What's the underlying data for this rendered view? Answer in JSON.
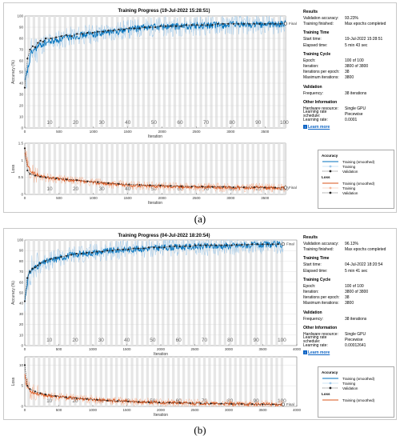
{
  "figures": [
    {
      "id": "a",
      "caption": "(a)",
      "title": "Training Progress (19-Jul-2022 15:28:51)",
      "accuracy_axis": {
        "ylabel": "Accuracy (%)",
        "yticks": [
          "0",
          "10",
          "20",
          "30",
          "40",
          "50",
          "60",
          "70",
          "80",
          "90",
          "100"
        ],
        "final_label": "Final"
      },
      "loss_axis": {
        "ylabel": "Loss",
        "yticks": [
          "0",
          "0.5",
          "1",
          "1.5"
        ],
        "final_label": "Final"
      },
      "xlabel": "Iteration",
      "xticks": [
        "0",
        "500",
        "1000",
        "1500",
        "2000",
        "2500",
        "3000",
        "3500"
      ],
      "epoch_labels": [
        "10",
        "20",
        "30",
        "40",
        "50",
        "60",
        "70",
        "80",
        "90",
        "100"
      ],
      "info": {
        "results_header": "Results",
        "results": [
          [
            "Validation accuracy:",
            "93.23%"
          ],
          [
            "Training finished:",
            "Max epochs completed"
          ]
        ],
        "time_header": "Training Time",
        "time": [
          [
            "Start time:",
            "19-Jul-2022 15:28:51"
          ],
          [
            "Elapsed time:",
            "5 min 43 sec"
          ]
        ],
        "cycle_header": "Training Cycle",
        "cycle": [
          [
            "Epoch:",
            "100 of 100"
          ],
          [
            "Iteration:",
            "3800 of 3800"
          ],
          [
            "Iterations per epoch:",
            "38"
          ],
          [
            "Maximum iterations:",
            "3800"
          ]
        ],
        "validation_header": "Validation",
        "validation": [
          [
            "Frequency:",
            "38 iterations"
          ]
        ],
        "other_header": "Other Information",
        "other": [
          [
            "Hardware resource:",
            "Single GPU"
          ],
          [
            "Learning rate schedule:",
            "Piecewise"
          ],
          [
            "Learning rate:",
            "0.0001"
          ]
        ],
        "learn_more": "Learn more"
      },
      "legend": {
        "accuracy_header": "Accuracy",
        "accuracy_items": [
          "Training (smoothed)",
          "Training",
          "Validation"
        ],
        "loss_header": "Loss",
        "loss_items": [
          "Training (smoothed)",
          "Training",
          "Validation"
        ]
      }
    },
    {
      "id": "b",
      "caption": "(b)",
      "title": "Training Progress (04-Jul-2022 18:20:54)",
      "accuracy_axis": {
        "ylabel": "Accuracy (%)",
        "yticks": [
          "0",
          "10",
          "20",
          "30",
          "40",
          "50",
          "60",
          "70",
          "80",
          "90",
          "100"
        ],
        "final_label": "Final"
      },
      "loss_axis": {
        "ylabel": "Loss",
        "yticks": [
          "0",
          "5",
          "10"
        ],
        "final_label": "Final"
      },
      "xlabel": "Iteration",
      "xticks": [
        "0",
        "500",
        "1000",
        "1500",
        "2000",
        "2500",
        "3000",
        "3500",
        "4000"
      ],
      "epoch_labels": [
        "10",
        "20",
        "30",
        "40",
        "50",
        "60",
        "70",
        "80",
        "90",
        "100"
      ],
      "info": {
        "results_header": "Results",
        "results": [
          [
            "Validation accuracy:",
            "96.13%"
          ],
          [
            "Training finished:",
            "Max epochs completed"
          ]
        ],
        "time_header": "Training Time",
        "time": [
          [
            "Start time:",
            "04-Jul-2022 18:20:54"
          ],
          [
            "Elapsed time:",
            "5 min 41 sec"
          ]
        ],
        "cycle_header": "Training Cycle",
        "cycle": [
          [
            "Epoch:",
            "100 of 100"
          ],
          [
            "Iteration:",
            "3800 of 3800"
          ],
          [
            "Iterations per epoch:",
            "38"
          ],
          [
            "Maximum iterations:",
            "3800"
          ]
        ],
        "validation_header": "Validation",
        "validation": [
          [
            "Frequency:",
            "38 iterations"
          ]
        ],
        "other_header": "Other Information",
        "other": [
          [
            "Hardware resource:",
            "Single GPU"
          ],
          [
            "Learning rate schedule:",
            "Piecewise"
          ],
          [
            "Learning rate:",
            "0.00012641"
          ]
        ],
        "learn_more": "Learn more"
      },
      "legend": {
        "accuracy_header": "Accuracy",
        "accuracy_items": [
          "Training (smoothed)",
          "Training",
          "Validation"
        ],
        "loss_header": "Loss",
        "loss_items": [
          "Training (smoothed)"
        ]
      }
    }
  ],
  "colors": {
    "acc_smoothed": "#0072bd",
    "acc_raw": "#9fc9ea",
    "loss_smoothed": "#d95319",
    "loss_raw": "#f4b79a",
    "validation": "#222222",
    "epoch_band": "#e6e6e6"
  },
  "chart_data": [
    {
      "type": "line",
      "title": "Training Progress (19-Jul-2022 15:28:51)",
      "xlabel": "Iteration",
      "ylabel": "Accuracy (%)",
      "xlim": [
        0,
        3800
      ],
      "ylim": [
        0,
        100
      ],
      "series": [
        {
          "name": "Training (smoothed)",
          "x": [
            0,
            100,
            200,
            300,
            500,
            700,
            1000,
            1300,
            1500,
            1800,
            2100,
            2400,
            2700,
            3000,
            3300,
            3600,
            3800
          ],
          "values": [
            40,
            68,
            73,
            76,
            79,
            82,
            84,
            86,
            88,
            90,
            90.5,
            91,
            91.5,
            92,
            92.2,
            92.5,
            92.8
          ]
        },
        {
          "name": "Validation",
          "x": [
            0,
            38,
            76,
            114,
            152,
            190,
            228,
            266,
            304,
            380,
            456,
            532,
            608,
            684,
            760,
            836,
            912,
            988,
            1064,
            1140,
            1216,
            1292,
            1368,
            1444,
            1520,
            1596,
            1672,
            1748,
            1824,
            1900,
            1976,
            2052,
            2128,
            2204,
            2280,
            2356,
            2432,
            2508,
            2584,
            2660,
            2736,
            2812,
            2888,
            2964,
            3040,
            3116,
            3192,
            3268,
            3344,
            3420,
            3496,
            3572,
            3648,
            3724,
            3800
          ],
          "values": [
            36,
            62,
            70,
            73,
            72,
            76,
            78,
            77,
            80,
            80,
            81,
            82,
            83,
            82,
            84,
            84,
            85,
            85,
            86,
            86,
            87,
            87,
            88,
            88,
            89,
            89,
            89,
            90,
            90,
            90,
            91,
            91,
            91,
            91,
            91,
            92,
            92,
            92,
            92,
            92,
            92,
            93,
            93,
            93,
            93,
            93,
            93,
            93,
            93,
            93,
            93,
            93,
            93,
            93,
            93.2
          ]
        }
      ]
    },
    {
      "type": "line",
      "xlabel": "Iteration",
      "ylabel": "Loss",
      "xlim": [
        0,
        3800
      ],
      "ylim": [
        0,
        1.5
      ],
      "series": [
        {
          "name": "Training (smoothed)",
          "x": [
            0,
            50,
            100,
            200,
            300,
            500,
            700,
            1000,
            1300,
            1500,
            1800,
            2100,
            2400,
            2700,
            3000,
            3300,
            3600,
            3800
          ],
          "values": [
            1.2,
            0.8,
            0.65,
            0.55,
            0.5,
            0.45,
            0.4,
            0.35,
            0.3,
            0.27,
            0.25,
            0.24,
            0.22,
            0.21,
            0.2,
            0.2,
            0.19,
            0.19
          ]
        },
        {
          "name": "Validation",
          "x": [
            0,
            38,
            76,
            152,
            228,
            304,
            456,
            608,
            760,
            912,
            1064,
            1216,
            1368,
            1520,
            1672,
            1824,
            1976,
            2128,
            2280,
            2432,
            2584,
            2736,
            2888,
            3040,
            3192,
            3344,
            3496,
            3648,
            3800
          ],
          "values": [
            1.35,
            0.7,
            0.6,
            0.55,
            0.52,
            0.5,
            0.47,
            0.44,
            0.42,
            0.38,
            0.36,
            0.33,
            0.31,
            0.29,
            0.28,
            0.27,
            0.26,
            0.25,
            0.24,
            0.23,
            0.23,
            0.22,
            0.22,
            0.21,
            0.21,
            0.21,
            0.2,
            0.2,
            0.2
          ]
        }
      ]
    },
    {
      "type": "line",
      "title": "Training Progress (04-Jul-2022 18:20:54)",
      "xlabel": "Iteration",
      "ylabel": "Accuracy (%)",
      "xlim": [
        0,
        4000
      ],
      "ylim": [
        0,
        100
      ],
      "series": [
        {
          "name": "Training (smoothed)",
          "x": [
            0,
            50,
            100,
            200,
            300,
            500,
            700,
            1000,
            1300,
            1500,
            1800,
            2100,
            2400,
            2700,
            3000,
            3300,
            3600,
            3800
          ],
          "values": [
            42,
            66,
            72,
            76,
            79,
            83,
            86,
            88,
            90,
            91,
            92,
            93,
            93.5,
            94,
            94.5,
            95,
            95.5,
            95.8
          ]
        },
        {
          "name": "Validation",
          "x": [
            0,
            38,
            76,
            114,
            152,
            190,
            228,
            304,
            380,
            456,
            532,
            608,
            684,
            760,
            836,
            912,
            988,
            1064,
            1140,
            1216,
            1292,
            1368,
            1444,
            1520,
            1596,
            1672,
            1748,
            1824,
            1900,
            1976,
            2052,
            2128,
            2204,
            2280,
            2356,
            2432,
            2508,
            2584,
            2660,
            2736,
            2812,
            2888,
            2964,
            3040,
            3116,
            3192,
            3268,
            3344,
            3420,
            3496,
            3572,
            3648,
            3724,
            3800
          ],
          "values": [
            42,
            64,
            70,
            73,
            74,
            76,
            78,
            80,
            82,
            83,
            84,
            85,
            86,
            87,
            87,
            88,
            88,
            89,
            89,
            90,
            90,
            91,
            91,
            91,
            92,
            92,
            92,
            93,
            93,
            93,
            93,
            94,
            94,
            94,
            94,
            94,
            95,
            95,
            95,
            95,
            95,
            95,
            95,
            95,
            95.5,
            95.5,
            95.5,
            96,
            96,
            96,
            96,
            96,
            96.1,
            96.13
          ]
        }
      ]
    },
    {
      "type": "line",
      "xlabel": "Iteration",
      "ylabel": "Loss",
      "xlim": [
        0,
        4000
      ],
      "ylim": [
        0,
        12
      ],
      "series": [
        {
          "name": "Training (smoothed)",
          "x": [
            0,
            30,
            60,
            100,
            200,
            300,
            500,
            700,
            1000,
            1300,
            1500,
            1800,
            2100,
            2400,
            2700,
            3000,
            3300,
            3600,
            3800
          ],
          "values": [
            8,
            5,
            4.2,
            3.5,
            3.0,
            2.7,
            2.3,
            2.0,
            1.7,
            1.4,
            1.2,
            1.0,
            0.9,
            0.8,
            0.7,
            0.6,
            0.55,
            0.5,
            0.45
          ]
        },
        {
          "name": "Validation",
          "x": [
            0,
            38,
            76,
            152,
            228,
            304,
            456,
            608,
            760,
            912,
            1064,
            1216,
            1368,
            1520,
            1672,
            1824,
            1976,
            2128,
            2280,
            2432,
            2584,
            2736,
            2888,
            3040,
            3192,
            3344,
            3496,
            3648,
            3800
          ],
          "values": [
            10,
            5,
            4.2,
            3.6,
            3.2,
            2.9,
            2.5,
            2.2,
            2.0,
            1.8,
            1.6,
            1.4,
            1.3,
            1.2,
            1.1,
            1.0,
            0.95,
            0.9,
            0.85,
            0.8,
            0.75,
            0.7,
            0.65,
            0.6,
            0.58,
            0.55,
            0.52,
            0.5,
            0.48
          ]
        }
      ]
    }
  ]
}
